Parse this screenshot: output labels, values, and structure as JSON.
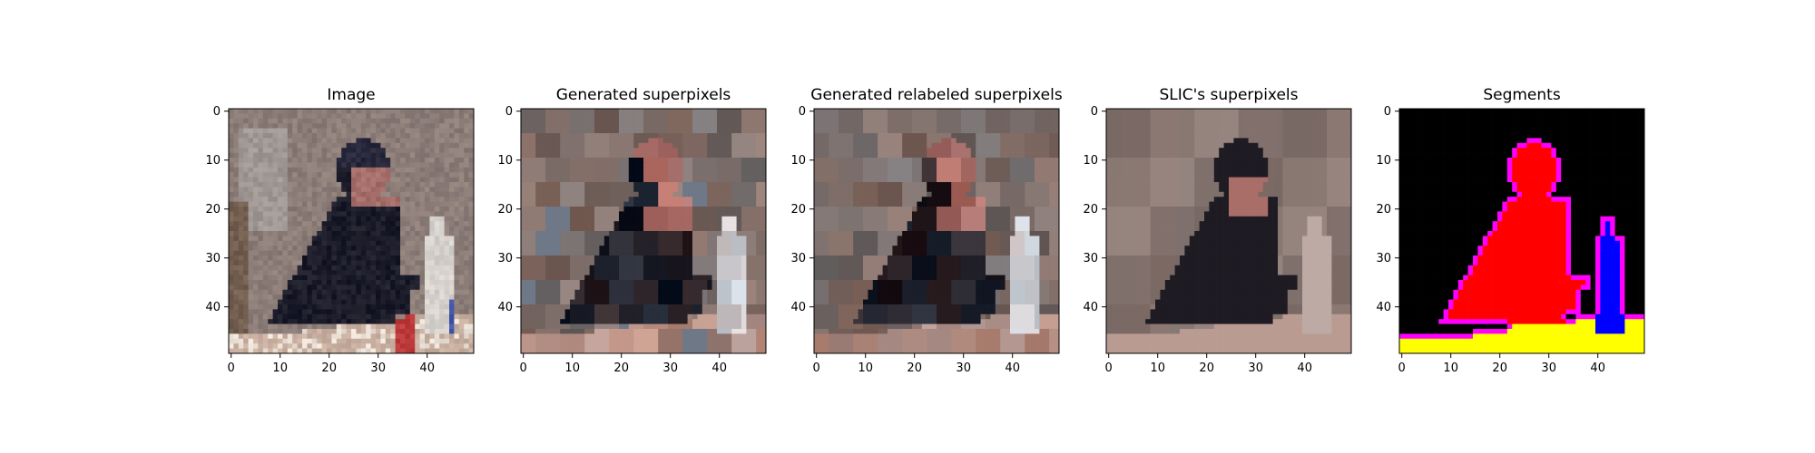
{
  "figure": {
    "background": "#ffffff"
  },
  "chart_data": [
    {
      "type": "heatmap",
      "title": "Image",
      "xlim": [
        0,
        50
      ],
      "ylim": [
        50,
        0
      ],
      "x_ticks": [
        0,
        10,
        20,
        30,
        40
      ],
      "y_ticks": [
        0,
        10,
        20,
        30,
        40
      ],
      "description_colors": [
        "#8a7f7c",
        "#a49692",
        "#3a3a55",
        "#1a1a28",
        "#d9d2cc",
        "#c23b3b",
        "#4a5fb3"
      ]
    },
    {
      "type": "heatmap",
      "title": "Generated superpixels",
      "xlim": [
        0,
        50
      ],
      "ylim": [
        50,
        0
      ],
      "x_ticks": [
        0,
        10,
        20,
        30,
        40
      ],
      "y_ticks": [
        0,
        10,
        20,
        30,
        40
      ],
      "description_colors": [
        "#6e6261",
        "#8c7d78",
        "#5c5657",
        "#2a2730",
        "#9a8a84",
        "#7a8797"
      ]
    },
    {
      "type": "heatmap",
      "title": "Generated relabeled superpixels",
      "xlim": [
        0,
        50
      ],
      "ylim": [
        50,
        0
      ],
      "x_ticks": [
        0,
        10,
        20,
        30,
        40
      ],
      "y_ticks": [
        0,
        10,
        20,
        30,
        40
      ],
      "description_colors": [
        "#6a5d5a",
        "#8d7c76",
        "#1f1c24",
        "#c7756f",
        "#dcdcdc",
        "#b6c4d3"
      ]
    },
    {
      "type": "heatmap",
      "title": "SLIC's superpixels",
      "xlim": [
        0,
        50
      ],
      "ylim": [
        50,
        0
      ],
      "x_ticks": [
        0,
        10,
        20,
        30,
        40
      ],
      "y_ticks": [
        0,
        10,
        20,
        30,
        40
      ],
      "description_colors": [
        "#7a6a66",
        "#8b7c77",
        "#1d1a22",
        "#a77b73",
        "#b8a29a"
      ]
    },
    {
      "type": "heatmap",
      "title": "Segments",
      "xlim": [
        0,
        50
      ],
      "ylim": [
        50,
        0
      ],
      "x_ticks": [
        0,
        10,
        20,
        30,
        40
      ],
      "y_ticks": [
        0,
        10,
        20,
        30,
        40
      ],
      "segment_colors": {
        "background": "#000000",
        "person": "#ff0000",
        "table": "#ffff00",
        "bottle": "#0000ff",
        "boundary": "#ff00ff"
      }
    }
  ]
}
